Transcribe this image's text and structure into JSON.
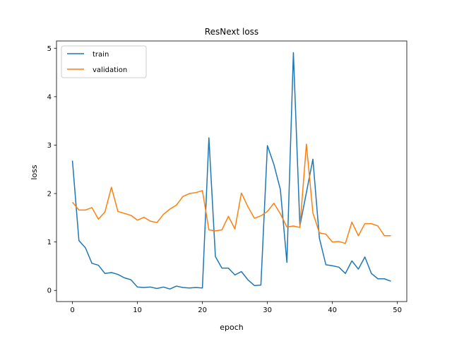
{
  "chart_data": {
    "type": "line",
    "title": "ResNext loss",
    "xlabel": "epoch",
    "ylabel": "loss",
    "xlim": [
      -2.45,
      51.45
    ],
    "ylim": [
      -0.23,
      5.15
    ],
    "xticks": [
      0,
      10,
      20,
      30,
      40,
      50
    ],
    "yticks": [
      0,
      1,
      2,
      3,
      4,
      5
    ],
    "grid": false,
    "legend_position": "top-left",
    "x": [
      0,
      1,
      2,
      3,
      4,
      5,
      6,
      7,
      8,
      9,
      10,
      11,
      12,
      13,
      14,
      15,
      16,
      17,
      18,
      19,
      20,
      21,
      22,
      23,
      24,
      25,
      26,
      27,
      28,
      29,
      30,
      31,
      32,
      33,
      34,
      35,
      36,
      37,
      38,
      39,
      40,
      41,
      42,
      43,
      44,
      45,
      46,
      47,
      48,
      49
    ],
    "series": [
      {
        "name": "train",
        "color": "#1f77b4",
        "values": [
          2.68,
          1.03,
          0.88,
          0.56,
          0.52,
          0.35,
          0.37,
          0.33,
          0.26,
          0.22,
          0.07,
          0.06,
          0.07,
          0.04,
          0.07,
          0.03,
          0.09,
          0.06,
          0.05,
          0.06,
          0.05,
          3.15,
          0.7,
          0.46,
          0.46,
          0.32,
          0.39,
          0.22,
          0.1,
          0.11,
          2.99,
          2.6,
          2.08,
          0.58,
          4.91,
          1.33,
          2.02,
          2.71,
          1.08,
          0.53,
          0.51,
          0.48,
          0.35,
          0.61,
          0.44,
          0.69,
          0.35,
          0.24,
          0.24,
          0.19
        ]
      },
      {
        "name": "validation",
        "color": "#ff7f0e",
        "values": [
          1.82,
          1.66,
          1.66,
          1.71,
          1.47,
          1.62,
          2.13,
          1.63,
          1.59,
          1.55,
          1.45,
          1.51,
          1.43,
          1.4,
          1.57,
          1.68,
          1.76,
          1.94,
          2.0,
          2.02,
          2.06,
          1.25,
          1.23,
          1.25,
          1.53,
          1.27,
          2.01,
          1.73,
          1.49,
          1.54,
          1.63,
          1.8,
          1.58,
          1.31,
          1.33,
          1.3,
          3.02,
          1.6,
          1.19,
          1.16,
          1.0,
          1.01,
          0.97,
          1.41,
          1.13,
          1.38,
          1.38,
          1.33,
          1.13,
          1.13
        ]
      }
    ]
  }
}
